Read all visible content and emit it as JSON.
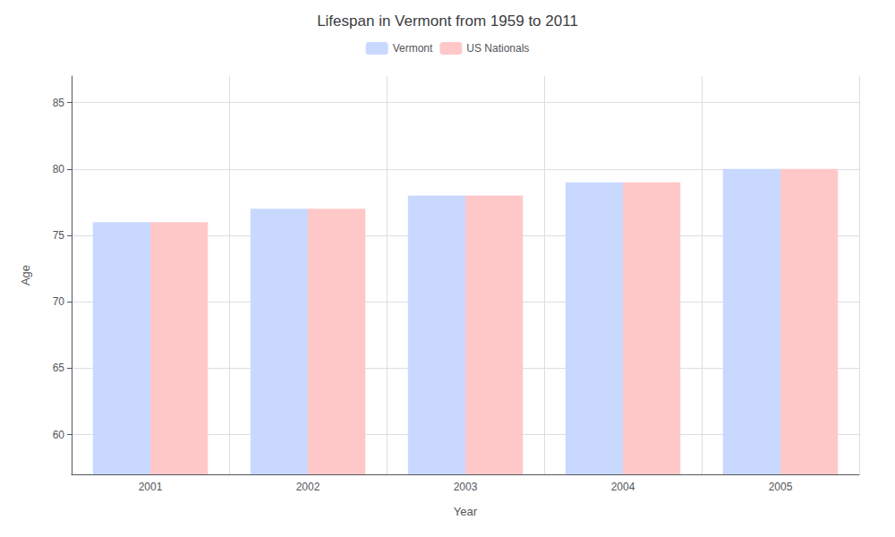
{
  "chart_data": {
    "type": "bar",
    "title": "Lifespan in Vermont from 1959 to 2011",
    "xlabel": "Year",
    "ylabel": "Age",
    "categories": [
      "2001",
      "2002",
      "2003",
      "2004",
      "2005"
    ],
    "series": [
      {
        "name": "Vermont",
        "color": "#c8d8ff",
        "values": [
          76.0,
          77.0,
          78.0,
          79.0,
          80.0
        ]
      },
      {
        "name": "US Nationals",
        "color": "#ffc8c8",
        "values": [
          76.0,
          77.0,
          78.0,
          79.0,
          80.0
        ]
      }
    ],
    "ylim": [
      57,
      87
    ],
    "yticks": [
      60,
      65,
      70,
      75,
      80,
      85
    ],
    "grid": true,
    "legend": "top"
  }
}
